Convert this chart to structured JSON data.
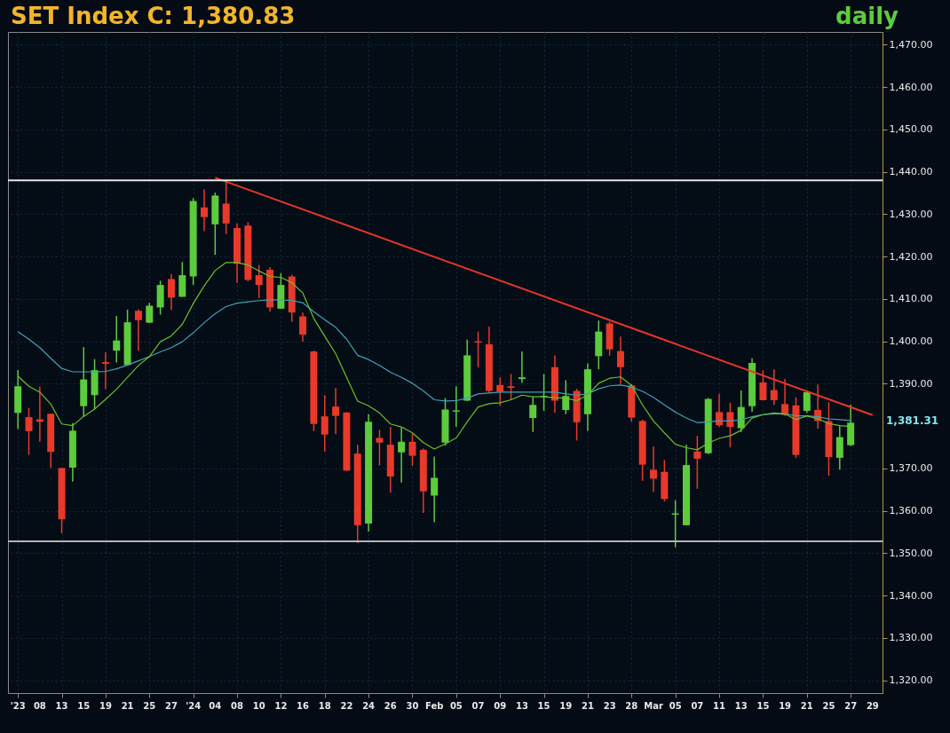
{
  "chart_data": {
    "type": "candlestick",
    "title": "SET Index C: 1,380.83",
    "subtitle": "daily",
    "categories": [
      "'23",
      null,
      "08",
      null,
      "13",
      null,
      "15",
      null,
      "19",
      null,
      "21",
      null,
      "25",
      null,
      "27",
      null,
      "'24",
      null,
      "04",
      null,
      "08",
      null,
      "10",
      null,
      "12",
      null,
      "16",
      null,
      "18",
      null,
      "22",
      null,
      "24",
      null,
      "26",
      null,
      "30",
      null,
      "Feb",
      null,
      "05",
      null,
      "07",
      null,
      "09",
      null,
      "13",
      null,
      "15",
      null,
      "19",
      null,
      "21",
      null,
      "23",
      null,
      "28",
      null,
      "Mar",
      null,
      "05",
      null,
      "07",
      null,
      "11",
      null,
      "13",
      null,
      "15",
      null,
      "19",
      null,
      "21",
      null,
      "25",
      null,
      "27",
      null,
      "29"
    ],
    "ohlc": [
      [
        1383.1,
        1393.2,
        1379.3,
        1389.4
      ],
      [
        1382.1,
        1384.3,
        1373.2,
        1378.8
      ],
      [
        1381.6,
        1389.3,
        1376.3,
        1381.0
      ],
      [
        1382.9,
        1382.9,
        1370.1,
        1373.9
      ],
      [
        1370.1,
        1370.1,
        1354.7,
        1358.0
      ],
      [
        1370.2,
        1380.7,
        1366.9,
        1378.9
      ],
      [
        1384.7,
        1398.6,
        1382.1,
        1391.0
      ],
      [
        1387.3,
        1395.8,
        1384.0,
        1393.2
      ],
      [
        1395.1,
        1397.4,
        1388.7,
        1394.7
      ],
      [
        1397.8,
        1406.0,
        1395.0,
        1400.2
      ],
      [
        1394.4,
        1407.5,
        1394.3,
        1404.5
      ],
      [
        1407.2,
        1407.5,
        1397.8,
        1405.0
      ],
      [
        1404.4,
        1409.1,
        1404.3,
        1408.4
      ],
      [
        1408.0,
        1414.3,
        1406.3,
        1413.3
      ],
      [
        1414.7,
        1415.9,
        1407.4,
        1410.3
      ],
      [
        1410.5,
        1418.7,
        1410.5,
        1415.6
      ],
      [
        1415.3,
        1433.8,
        1413.3,
        1433.1
      ],
      [
        1431.6,
        1435.9,
        1426.0,
        1429.3
      ],
      [
        1427.6,
        1435.1,
        1420.4,
        1434.4
      ],
      [
        1432.5,
        1437.9,
        1425.3,
        1427.8
      ],
      [
        1426.7,
        1427.8,
        1413.8,
        1418.3
      ],
      [
        1427.3,
        1428.1,
        1414.2,
        1414.5
      ],
      [
        1415.6,
        1418.0,
        1410.2,
        1413.3
      ],
      [
        1416.9,
        1417.5,
        1407.0,
        1408.0
      ],
      [
        1407.7,
        1416.1,
        1407.7,
        1413.3
      ],
      [
        1415.3,
        1415.7,
        1404.6,
        1406.8
      ],
      [
        1405.9,
        1406.8,
        1399.9,
        1401.6
      ],
      [
        1397.6,
        1397.8,
        1378.8,
        1380.5
      ],
      [
        1382.3,
        1387.3,
        1374.0,
        1378.0
      ],
      [
        1384.6,
        1389.0,
        1378.1,
        1382.4
      ],
      [
        1383.2,
        1383.3,
        1369.4,
        1369.5
      ],
      [
        1373.5,
        1375.6,
        1352.4,
        1356.6
      ],
      [
        1357.0,
        1382.8,
        1355.1,
        1381.0
      ],
      [
        1377.2,
        1379.1,
        1370.7,
        1376.1
      ],
      [
        1375.6,
        1379.8,
        1364.3,
        1368.1
      ],
      [
        1373.8,
        1379.6,
        1366.7,
        1376.3
      ],
      [
        1376.3,
        1378.2,
        1370.6,
        1373.0
      ],
      [
        1374.4,
        1374.7,
        1359.5,
        1364.6
      ],
      [
        1363.6,
        1372.8,
        1357.3,
        1367.8
      ],
      [
        1376.1,
        1386.6,
        1375.4,
        1383.9
      ],
      [
        1383.4,
        1389.4,
        1379.8,
        1383.7
      ],
      [
        1386.0,
        1400.4,
        1385.9,
        1396.7
      ],
      [
        1400.0,
        1402.3,
        1393.9,
        1399.7
      ],
      [
        1399.3,
        1403.5,
        1387.8,
        1388.3
      ],
      [
        1389.7,
        1391.5,
        1384.8,
        1388.1
      ],
      [
        1389.4,
        1392.3,
        1386.2,
        1389.0
      ],
      [
        1391.1,
        1397.6,
        1390.2,
        1391.5
      ],
      [
        1381.9,
        1386.9,
        1378.6,
        1385.0
      ],
      [
        1386.9,
        1392.3,
        1383.6,
        1387.1
      ],
      [
        1393.9,
        1396.7,
        1383.1,
        1386.0
      ],
      [
        1383.8,
        1390.8,
        1382.8,
        1387.1
      ],
      [
        1388.3,
        1388.8,
        1376.6,
        1380.9
      ],
      [
        1382.8,
        1394.8,
        1378.8,
        1393.4
      ],
      [
        1396.5,
        1404.9,
        1393.4,
        1402.3
      ],
      [
        1404.2,
        1404.6,
        1396.6,
        1398.1
      ],
      [
        1397.7,
        1401.1,
        1389.9,
        1393.9
      ],
      [
        1389.6,
        1389.9,
        1381.0,
        1382.0
      ],
      [
        1381.2,
        1381.5,
        1367.1,
        1370.9
      ],
      [
        1369.7,
        1375.2,
        1364.5,
        1367.6
      ],
      [
        1369.2,
        1372.0,
        1362.2,
        1362.8
      ],
      [
        1359.1,
        1362.5,
        1351.4,
        1359.4
      ],
      [
        1356.6,
        1375.6,
        1356.6,
        1370.8
      ],
      [
        1374.0,
        1377.7,
        1365.2,
        1372.3
      ],
      [
        1373.6,
        1386.6,
        1373.4,
        1386.4
      ],
      [
        1383.3,
        1387.6,
        1379.8,
        1380.2
      ],
      [
        1383.3,
        1385.5,
        1375.0,
        1379.8
      ],
      [
        1379.5,
        1388.4,
        1378.6,
        1384.5
      ],
      [
        1384.7,
        1396.0,
        1383.4,
        1394.9
      ],
      [
        1390.3,
        1393.2,
        1386.1,
        1386.1
      ],
      [
        1388.5,
        1393.4,
        1385.0,
        1386.1
      ],
      [
        1385.2,
        1391.1,
        1382.4,
        1382.6
      ],
      [
        1384.9,
        1386.8,
        1372.5,
        1373.2
      ],
      [
        1383.6,
        1388.4,
        1383.1,
        1388.0
      ],
      [
        1383.8,
        1389.8,
        1379.4,
        1381.2
      ],
      [
        1381.2,
        1385.6,
        1368.3,
        1372.7
      ],
      [
        1372.5,
        1380.0,
        1369.7,
        1377.4
      ],
      [
        1375.5,
        1385.1,
        1375.3,
        1380.8
      ],
      null,
      null
    ],
    "colors": [
      "#5ccc3c",
      "#e8392a",
      "#e8392a",
      "#e8392a",
      "#e8392a",
      "#5ccc3c",
      "#5ccc3c",
      "#5ccc3c",
      "#e8392a",
      "#5ccc3c",
      "#5ccc3c",
      "#e8392a",
      "#5ccc3c",
      "#5ccc3c",
      "#e8392a",
      "#5ccc3c",
      "#5ccc3c",
      "#e8392a",
      "#5ccc3c",
      "#e8392a",
      "#e8392a",
      "#e8392a",
      "#e8392a",
      "#e8392a",
      "#5ccc3c",
      "#e8392a",
      "#e8392a",
      "#e8392a",
      "#e8392a",
      "#e8392a",
      "#e8392a",
      "#e8392a",
      "#5ccc3c",
      "#e8392a",
      "#e8392a",
      "#5ccc3c",
      "#e8392a",
      "#e8392a",
      "#5ccc3c",
      "#5ccc3c",
      "#5ccc3c",
      "#5ccc3c",
      "#e8392a",
      "#e8392a",
      "#e8392a",
      "#e8392a",
      "#5ccc3c",
      "#5ccc3c",
      "#5ccc3c",
      "#e8392a",
      "#5ccc3c",
      "#e8392a",
      "#5ccc3c",
      "#5ccc3c",
      "#e8392a",
      "#e8392a",
      "#e8392a",
      "#e8392a",
      "#e8392a",
      "#e8392a",
      "#5ccc3c",
      "#5ccc3c",
      "#e8392a",
      "#5ccc3c",
      "#e8392a",
      "#e8392a",
      "#5ccc3c",
      "#5ccc3c",
      "#e8392a",
      "#e8392a",
      "#e8392a",
      "#e8392a",
      "#5ccc3c",
      "#e8392a",
      "#e8392a",
      "#5ccc3c",
      "#5ccc3c",
      null,
      null
    ],
    "series": [
      {
        "type": "line",
        "color": "#3fa3b5",
        "values": [
          1402.3,
          1400.5,
          1398.5,
          1396.0,
          1393.6,
          1392.8,
          1392.8,
          1392.8,
          1392.9,
          1393.5,
          1394.4,
          1395.4,
          1396.4,
          1397.5,
          1398.5,
          1399.9,
          1402.0,
          1404.4,
          1406.5,
          1408.2,
          1409.0,
          1409.3,
          1409.6,
          1409.8,
          1409.8,
          1409.6,
          1409.1,
          1407.0,
          1405.1,
          1403.3,
          1400.5,
          1396.7,
          1395.7,
          1394.3,
          1392.7,
          1391.5,
          1390.1,
          1388.3,
          1386.2,
          1385.9,
          1386.0,
          1386.6,
          1387.6,
          1387.8,
          1388.0,
          1388.0,
          1388.0,
          1388.0,
          1388.0,
          1388.0,
          1387.6,
          1387.3,
          1387.6,
          1388.8,
          1389.5,
          1389.7,
          1389.2,
          1388.2,
          1386.8,
          1385.0,
          1383.3,
          1381.9,
          1380.8,
          1381.0,
          1381.2,
          1381.2,
          1381.5,
          1382.2,
          1382.7,
          1382.9,
          1382.9,
          1382.4,
          1382.4,
          1382.2,
          1381.7,
          1381.5,
          1381.3,
          null,
          null
        ]
      },
      {
        "type": "line",
        "color": "#6cc02a",
        "values": [
          1391.8,
          1389.4,
          1388.0,
          1385.2,
          1380.5,
          1380.1,
          1382.3,
          1384.0,
          1386.3,
          1388.7,
          1391.5,
          1394.3,
          1396.4,
          1399.9,
          1401.3,
          1404.0,
          1408.9,
          1413.1,
          1416.7,
          1418.6,
          1418.6,
          1418.0,
          1416.6,
          1415.3,
          1415.1,
          1413.8,
          1411.4,
          1405.4,
          1401.2,
          1397.1,
          1391.5,
          1385.9,
          1384.8,
          1383.1,
          1380.5,
          1379.8,
          1378.4,
          1376.1,
          1374.6,
          1375.8,
          1377.2,
          1381.0,
          1384.5,
          1385.3,
          1385.5,
          1386.2,
          1387.3,
          1386.9,
          1386.9,
          1386.7,
          1386.6,
          1386.0,
          1387.3,
          1390.1,
          1391.3,
          1391.6,
          1389.6,
          1385.0,
          1381.2,
          1378.4,
          1375.7,
          1374.9,
          1374.4,
          1376.0,
          1377.1,
          1377.7,
          1379.0,
          1381.9,
          1382.7,
          1383.1,
          1382.9,
          1381.5,
          1382.4,
          1381.7,
          1380.6,
          1380.1,
          1379.9,
          null,
          null
        ]
      },
      {
        "type": "line",
        "color": "#e8352a",
        "values": [
          null,
          null,
          null,
          null,
          null,
          null,
          null,
          null,
          null,
          null,
          null,
          null,
          null,
          null,
          null,
          null,
          null,
          null,
          1438.6,
          null,
          null,
          null,
          null,
          null,
          null,
          null,
          null,
          null,
          null,
          null,
          null,
          null,
          null,
          null,
          null,
          null,
          null,
          null,
          null,
          null,
          null,
          null,
          null,
          null,
          null,
          null,
          null,
          null,
          null,
          null,
          null,
          null,
          null,
          null,
          null,
          null,
          null,
          null,
          null,
          null,
          null,
          null,
          null,
          null,
          null,
          null,
          null,
          null,
          null,
          null,
          null,
          null,
          null,
          null,
          null,
          null,
          null,
          null,
          1382.6
        ]
      }
    ],
    "ylim": [
      1317,
      1473
    ],
    "yticks": [
      {
        "value": 1320,
        "label": "1,320.00"
      },
      {
        "value": 1330,
        "label": "1,330.00"
      },
      {
        "value": 1340,
        "label": "1,340.00"
      },
      {
        "value": 1350,
        "label": "1,350.00"
      },
      {
        "value": 1360,
        "label": "1,360.00"
      },
      {
        "value": 1370,
        "label": "1,370.00"
      },
      {
        "value": 1390,
        "label": "1,390.00"
      },
      {
        "value": 1400,
        "label": "1,400.00"
      },
      {
        "value": 1410,
        "label": "1,410.00"
      },
      {
        "value": 1420,
        "label": "1,420.00"
      },
      {
        "value": 1430,
        "label": "1,430.00"
      },
      {
        "value": 1440,
        "label": "1,440.00"
      },
      {
        "value": 1450,
        "label": "1,450.00"
      },
      {
        "value": 1460,
        "label": "1,460.00"
      },
      {
        "value": 1470,
        "label": "1,470.00"
      }
    ],
    "grid": true,
    "ref_lines": [
      {
        "axis": "y",
        "value": 1438,
        "color": "#e6e6e6"
      },
      {
        "axis": "y",
        "value": 1352.8,
        "color": "#b4b4b4"
      }
    ],
    "annotations": [
      "1,381.31"
    ]
  }
}
